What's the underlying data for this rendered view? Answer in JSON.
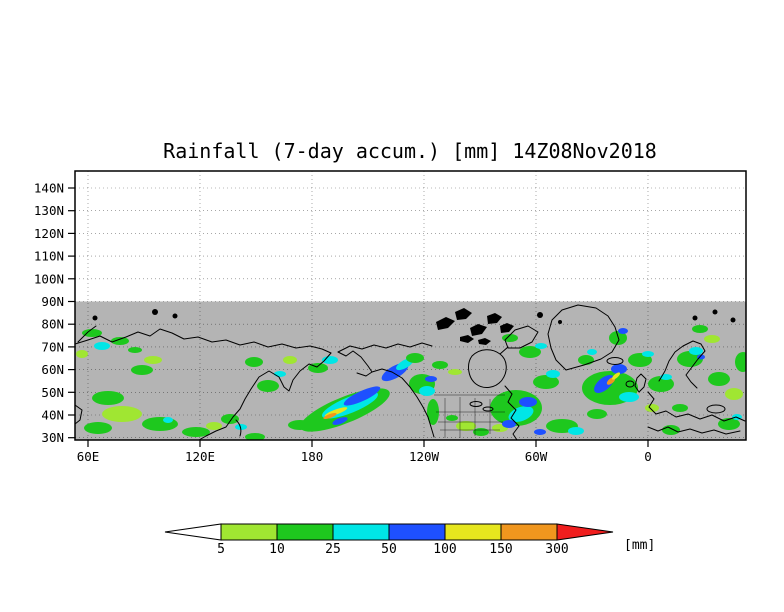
{
  "title": "Rainfall (7-day accum.) [mm] 14Z08Nov2018",
  "axes": {
    "y_labels": [
      "140N",
      "130N",
      "120N",
      "110N",
      "100N",
      "90N",
      "80N",
      "70N",
      "60N",
      "50N",
      "40N",
      "30N"
    ],
    "y_lats": [
      140,
      130,
      120,
      110,
      100,
      90,
      80,
      70,
      60,
      50,
      40,
      30
    ],
    "x_labels": [
      "60E",
      "120E",
      "180",
      "120W",
      "60W",
      "0"
    ],
    "x_lons_east": [
      60,
      120,
      180,
      240,
      300,
      360
    ]
  },
  "colorbar": {
    "levels": [
      5,
      10,
      25,
      50,
      100,
      150,
      300
    ],
    "labels": [
      "5",
      "10",
      "25",
      "50",
      "100",
      "150",
      "300"
    ],
    "colors": [
      "#ffffff",
      "#a0e632",
      "#1ec81e",
      "#00e6e6",
      "#1e50ff",
      "#e6e61e",
      "#f0961e",
      "#f01e1e"
    ],
    "unit": "[mm]"
  },
  "map": {
    "land_ocean_color": "#b4b4b4",
    "coastline_color": "#000000",
    "no_data_region": "above 90N (plain white with gridlines)"
  },
  "chart_data": {
    "type": "heatmap",
    "title": "Rainfall (7-day accum.) [mm] 14Z08Nov2018",
    "variable": "Rainfall, 7-day accumulation",
    "units": "mm",
    "valid_time": "14Z08Nov2018",
    "projection": "lat-lon (cylindrical), longitudes wrap from ~55E eastward to ~55E",
    "lat_tick_labels": [
      "30N",
      "40N",
      "50N",
      "60N",
      "70N",
      "80N",
      "90N",
      "100N",
      "110N",
      "120N",
      "130N",
      "140N"
    ],
    "lon_tick_labels": [
      "60E",
      "120E",
      "180",
      "120W",
      "60W",
      "0"
    ],
    "data_extent": "data shown 30N-90N; axis extends to 140N with no data",
    "levels_mm": [
      5,
      10,
      25,
      50,
      100,
      150,
      300
    ],
    "palette": [
      "#ffffff",
      "#a0e632",
      "#1ec81e",
      "#00e6e6",
      "#1e50ff",
      "#e6e61e",
      "#f0961e",
      "#f01e1e"
    ],
    "background": "grey land/ocean (#b4b4b4) with black coastlines",
    "features": [
      {
        "region": "Central and East Asia (60E-140E, 30-55N)",
        "rainfall": "scattered 5-50 mm patches (light green/green, some cyan)"
      },
      {
        "region": "Kamchatka / Sea of Okhotsk (150E-165E, 50-62N)",
        "rainfall": "10-50 mm"
      },
      {
        "region": "Northwest Pacific storm track (160E-150W, 35-55N)",
        "rainfall": "diagonal band 25-150 mm (cyan/blue) with 150-300+ mm streak (yellow/orange)"
      },
      {
        "region": "Gulf of Alaska and NA west coast (150W-125W, 45-60N)",
        "rainfall": "25-100 mm"
      },
      {
        "region": "Central US (100W-85W, 30-40N)",
        "rainfall": "5-25 mm"
      },
      {
        "region": "Eastern North America / NW Atlantic (85W-50W, 30-55N)",
        "rainfall": "broad 10-100 mm with embedded 50-100 mm blue cores"
      },
      {
        "region": "North Atlantic south of Greenland to Iceland (45W-10W, 50-70N)",
        "rainfall": "10-100 mm with 100-300 mm streak (yellow/orange near 40W, 55N)"
      },
      {
        "region": "British Isles / Scandinavia / Europe (10W-45E, 35-70N)",
        "rainfall": "10-50 mm, locally 50-100 mm along Norway coast"
      },
      {
        "region": "Above 90N",
        "rainfall": "no data (white band, axis artifact)"
      }
    ]
  }
}
